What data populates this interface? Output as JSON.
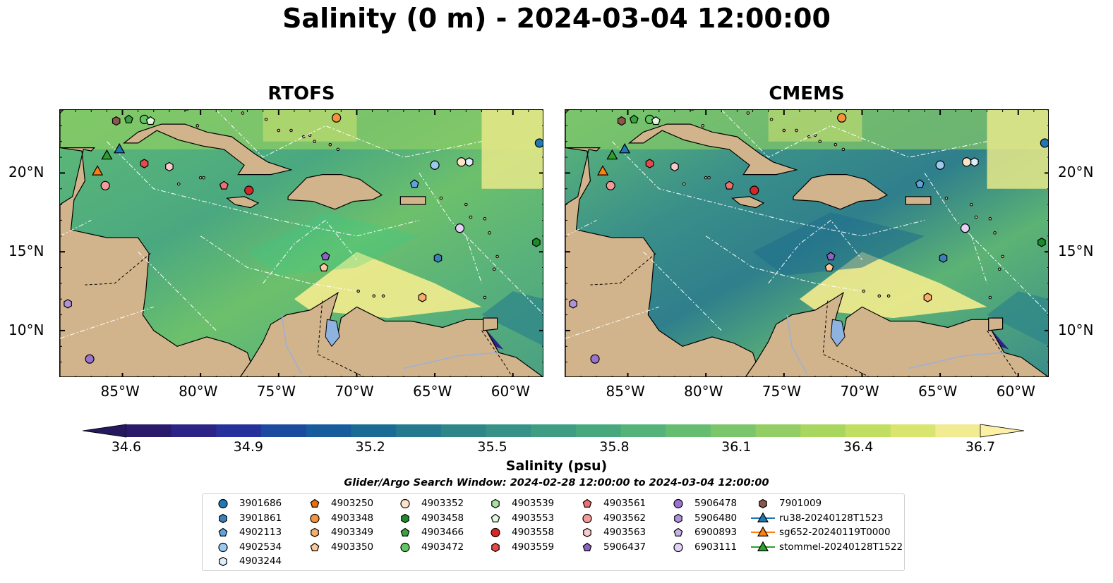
{
  "title": "Salinity (0 m) - 2024-03-04 12:00:00",
  "panels": [
    {
      "title": "RTOFS",
      "shallow_fill": "#2dd08a"
    },
    {
      "title": "CMEMS",
      "shallow_fill": "#1f6e8c"
    }
  ],
  "axes": {
    "lon_ticks": [
      {
        "lon": -85,
        "label": "85°W"
      },
      {
        "lon": -80,
        "label": "80°W"
      },
      {
        "lon": -75,
        "label": "75°W"
      },
      {
        "lon": -70,
        "label": "70°W"
      },
      {
        "lon": -65,
        "label": "65°W"
      },
      {
        "lon": -60,
        "label": "60°W"
      }
    ],
    "lat_ticks": [
      {
        "lat": 20,
        "label": "20°N"
      },
      {
        "lat": 15,
        "label": "15°N"
      },
      {
        "lat": 10,
        "label": "10°N"
      }
    ],
    "lon_range": [
      -89,
      -58
    ],
    "lat_range": [
      7,
      24
    ]
  },
  "colorbar": {
    "label": "Salinity (psu)",
    "ticks": [
      "34.6",
      "34.9",
      "35.2",
      "35.5",
      "35.8",
      "36.1",
      "36.4",
      "36.7"
    ],
    "range": [
      34.6,
      36.7
    ],
    "colors": [
      "#2a1a6b",
      "#2b2486",
      "#26319b",
      "#1c4a9f",
      "#175c9c",
      "#1a6c94",
      "#24798e",
      "#2e8689",
      "#369286",
      "#3e9d82",
      "#47a87d",
      "#54b378",
      "#66bd72",
      "#7bc66a",
      "#92ce64",
      "#a8d65f",
      "#c0de62",
      "#d8e56f",
      "#f1ec92"
    ],
    "under_color": "#26185f",
    "over_color": "#fbf0a6"
  },
  "window_text": "Glider/Argo Search Window: 2024-02-28 12:00:00 to 2024-03-04 12:00:00",
  "colors": {
    "land": "#d2b48c",
    "lake": "#8fb3e0",
    "deep_pacific": "#2a1a6b",
    "base_sea": "#6cc06c"
  },
  "legend": [
    {
      "id": "3901686",
      "marker": "circle",
      "color": "#1f77b4"
    },
    {
      "id": "3901861",
      "marker": "hexagon",
      "color": "#3b7fb6"
    },
    {
      "id": "4902113",
      "marker": "pentagon",
      "color": "#5fa2dd"
    },
    {
      "id": "4902534",
      "marker": "circle",
      "color": "#9cc9ee"
    },
    {
      "id": "4903244",
      "marker": "hexagon",
      "color": "#ddeefa"
    },
    {
      "id": "4903250",
      "marker": "pentagon",
      "color": "#e6700f"
    },
    {
      "id": "4903348",
      "marker": "circle",
      "color": "#f5923b"
    },
    {
      "id": "4903349",
      "marker": "hexagon",
      "color": "#f9ad6a"
    },
    {
      "id": "4903350",
      "marker": "pentagon",
      "color": "#fcc998"
    },
    {
      "id": "4903352",
      "marker": "circle",
      "color": "#fde4c9"
    },
    {
      "id": "4903458",
      "marker": "hexagon",
      "color": "#1f8a2b"
    },
    {
      "id": "4903466",
      "marker": "pentagon",
      "color": "#3aa33f"
    },
    {
      "id": "4903472",
      "marker": "circle",
      "color": "#62c562"
    },
    {
      "id": "4903539",
      "marker": "hexagon",
      "color": "#a6e3a0"
    },
    {
      "id": "4903553",
      "marker": "pentagon",
      "color": "#e2f7dc"
    },
    {
      "id": "4903558",
      "marker": "circle",
      "color": "#d62728"
    },
    {
      "id": "4903559",
      "marker": "hexagon",
      "color": "#e54a4a"
    },
    {
      "id": "4903561",
      "marker": "pentagon",
      "color": "#f07070"
    },
    {
      "id": "4903562",
      "marker": "circle",
      "color": "#f59a9a"
    },
    {
      "id": "4903563",
      "marker": "hexagon",
      "color": "#fbcaca"
    },
    {
      "id": "5906437",
      "marker": "pentagon",
      "color": "#8c63c3"
    },
    {
      "id": "5906478",
      "marker": "circle",
      "color": "#9b72cf"
    },
    {
      "id": "5906480",
      "marker": "hexagon",
      "color": "#b092dc"
    },
    {
      "id": "6900893",
      "marker": "pentagon",
      "color": "#c8b3e8"
    },
    {
      "id": "6903111",
      "marker": "circle",
      "color": "#e2d0f5"
    },
    {
      "id": "7901009",
      "marker": "hexagon",
      "color": "#8c564b"
    },
    {
      "id": "ru38-20240128T1523",
      "marker": "triangle",
      "color": "#1f77b4",
      "line": true
    },
    {
      "id": "sg652-20240119T0000",
      "marker": "triangle",
      "color": "#ff7f0e",
      "line": true
    },
    {
      "id": "stommel-20240128T1522",
      "marker": "triangle",
      "color": "#2ca02c",
      "line": true
    }
  ],
  "platforms": [
    {
      "lon": -58.3,
      "lat": 21.9,
      "marker": "circle",
      "color": "#1f77b4"
    },
    {
      "lon": -58.5,
      "lat": 15.6,
      "marker": "hexagon",
      "color": "#1f8a2b"
    },
    {
      "lon": -64.8,
      "lat": 14.6,
      "marker": "hexagon",
      "color": "#3b7fb6"
    },
    {
      "lon": -66.3,
      "lat": 19.3,
      "marker": "pentagon",
      "color": "#5fa2dd"
    },
    {
      "lon": -65.0,
      "lat": 20.5,
      "marker": "circle",
      "color": "#9cc9ee"
    },
    {
      "lon": -62.8,
      "lat": 20.7,
      "marker": "hexagon",
      "color": "#ddeefa"
    },
    {
      "lon": -63.3,
      "lat": 20.7,
      "marker": "circle",
      "color": "#fde4c9"
    },
    {
      "lon": -63.4,
      "lat": 16.5,
      "marker": "circle",
      "color": "#e2d0f5"
    },
    {
      "lon": -65.8,
      "lat": 12.1,
      "marker": "hexagon",
      "color": "#f9ad6a"
    },
    {
      "lon": -71.3,
      "lat": 23.5,
      "marker": "circle",
      "color": "#f5923b"
    },
    {
      "lon": -72.0,
      "lat": 14.7,
      "marker": "pentagon",
      "color": "#8c63c3"
    },
    {
      "lon": -72.1,
      "lat": 14.0,
      "marker": "pentagon",
      "color": "#fcc998"
    },
    {
      "lon": -76.9,
      "lat": 18.9,
      "marker": "circle",
      "color": "#d62728"
    },
    {
      "lon": -78.5,
      "lat": 19.2,
      "marker": "pentagon",
      "color": "#f07070"
    },
    {
      "lon": -82.0,
      "lat": 20.4,
      "marker": "hexagon",
      "color": "#fbcaca"
    },
    {
      "lon": -83.6,
      "lat": 20.6,
      "marker": "hexagon",
      "color": "#e54a4a"
    },
    {
      "lon": -86.1,
      "lat": 19.2,
      "marker": "circle",
      "color": "#f59a9a"
    },
    {
      "lon": -85.4,
      "lat": 23.3,
      "marker": "hexagon",
      "color": "#8c564b"
    },
    {
      "lon": -84.6,
      "lat": 23.4,
      "marker": "pentagon",
      "color": "#3aa33f"
    },
    {
      "lon": -83.6,
      "lat": 23.4,
      "marker": "circle",
      "color": "#62c562"
    },
    {
      "lon": -83.2,
      "lat": 23.3,
      "marker": "pentagon",
      "color": "#e2f7dc"
    },
    {
      "lon": -85.2,
      "lat": 21.5,
      "marker": "triangle",
      "color": "#1f77b4"
    },
    {
      "lon": -86.0,
      "lat": 21.1,
      "marker": "triangle",
      "color": "#2ca02c"
    },
    {
      "lon": -86.6,
      "lat": 20.1,
      "marker": "triangle",
      "color": "#ff7f0e"
    },
    {
      "lon": -88.5,
      "lat": 11.7,
      "marker": "hexagon",
      "color": "#b092dc"
    },
    {
      "lon": -87.1,
      "lat": 8.2,
      "marker": "circle",
      "color": "#9b72cf"
    }
  ]
}
